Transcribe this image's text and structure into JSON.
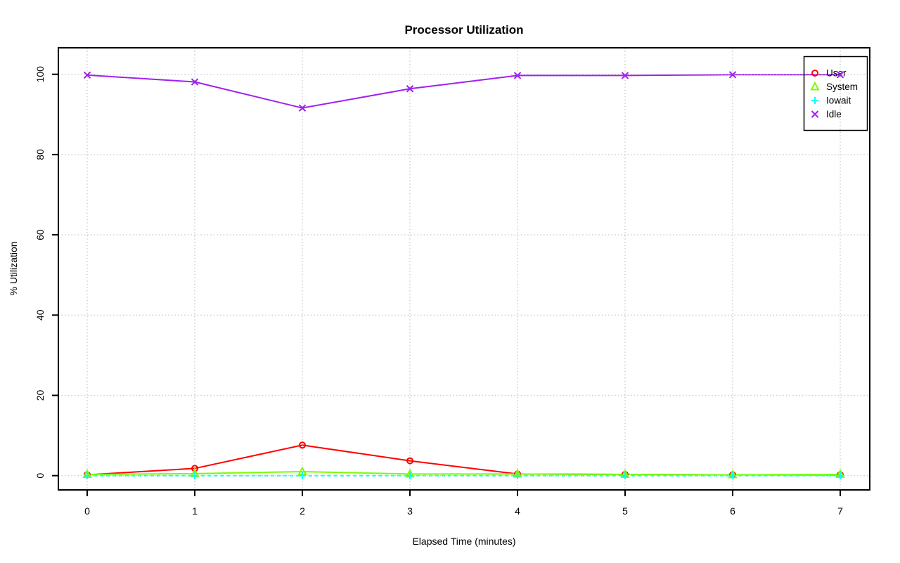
{
  "chart_data": {
    "type": "line",
    "title": "Processor Utilization",
    "xlabel": "Elapsed Time (minutes)",
    "ylabel": "% Utilization",
    "x": [
      0,
      1,
      2,
      3,
      4,
      5,
      6,
      7
    ],
    "xticks": [
      0,
      1,
      2,
      3,
      4,
      5,
      6,
      7
    ],
    "yticks": [
      0,
      20,
      40,
      60,
      80,
      100
    ],
    "xlim": [
      0,
      7
    ],
    "ylim": [
      0,
      100
    ],
    "grid": true,
    "grid_style": "dotted",
    "grid_color": "#c8c8c8",
    "legend_position": "top-right",
    "axis_color": "#000000",
    "background_color": "#ffffff",
    "series": [
      {
        "name": "User",
        "color": "#ff0000",
        "marker": "circle",
        "line": "solid",
        "values": [
          0.2,
          1.8,
          7.6,
          3.7,
          0.4,
          0.3,
          0.2,
          0.2
        ]
      },
      {
        "name": "System",
        "color": "#7cfc00",
        "marker": "triangle",
        "line": "solid",
        "values": [
          0.3,
          0.5,
          1.0,
          0.4,
          0.4,
          0.3,
          0.2,
          0.3
        ]
      },
      {
        "name": "Iowait",
        "color": "#00ffff",
        "marker": "plus",
        "line": "dashed",
        "values": [
          0.0,
          0.0,
          0.0,
          0.0,
          0.0,
          0.0,
          0.0,
          0.0
        ]
      },
      {
        "name": "Idle",
        "color": "#a020f0",
        "marker": "x",
        "line": "solid",
        "values": [
          99.8,
          98.1,
          91.6,
          96.4,
          99.7,
          99.7,
          99.9,
          99.9
        ]
      }
    ]
  }
}
